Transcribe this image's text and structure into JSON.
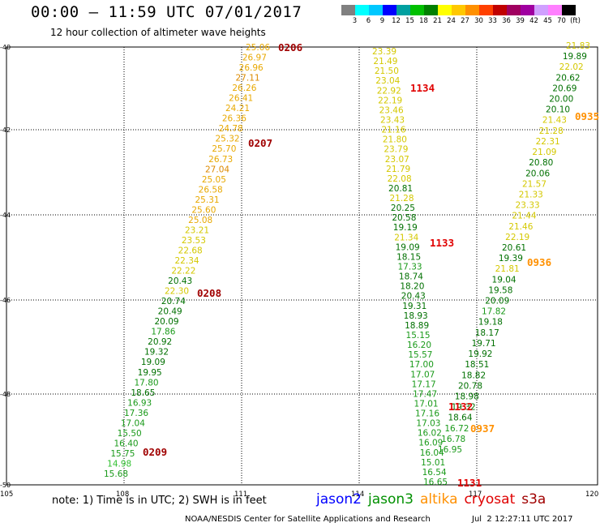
{
  "header": {
    "title": "00:00 – 11:59 UTC 07/01/2017",
    "subtitle": "12 hour collection of altimeter wave heights"
  },
  "legend": {
    "colors": [
      "#808080",
      "#00ffff",
      "#00c8ff",
      "#0000ff",
      "#00a0a0",
      "#00c000",
      "#008000",
      "#ffff00",
      "#ffc800",
      "#ff9000",
      "#ff4000",
      "#c00000",
      "#a00060",
      "#a000a0",
      "#d0a0ff",
      "#ff80ff",
      "#000000"
    ],
    "labels": [
      "3",
      "6",
      "9",
      "12",
      "15",
      "18",
      "21",
      "24",
      "27",
      "30",
      "33",
      "36",
      "39",
      "42",
      "45",
      "70",
      "(ft)"
    ]
  },
  "axes": {
    "x_ticks": [
      "105",
      "108",
      "111",
      "114",
      "117",
      "120"
    ],
    "y_ticks": [
      "-40",
      "-42",
      "-44",
      "-46",
      "-48",
      "-50"
    ]
  },
  "tracks": [
    {
      "values": [
        "25.06",
        "26.97",
        "26.96",
        "27.11",
        "26.26",
        "26.41",
        "24.21",
        "26.36",
        "24.78",
        "25.32",
        "25.70",
        "26.73",
        "27.04",
        "25.05",
        "26.58",
        "25.31",
        "25.60",
        "25.08",
        "23.21",
        "23.53",
        "22.68",
        "22.34",
        "22.22",
        "20.43",
        "22.30",
        "20.74",
        "20.49",
        "20.09",
        "17.86",
        "20.92",
        "19.32",
        "19.09",
        "19.95",
        "17.80",
        "18.65",
        "16.93",
        "17.36",
        "17.04",
        "15.50",
        "16.40",
        "15.75",
        "14.98",
        "15.68"
      ]
    },
    {
      "values": [
        "23.39",
        "21.49",
        "21.50",
        "23.04",
        "22.92",
        "22.19",
        "23.46",
        "23.43",
        "21.16",
        "21.80",
        "23.79",
        "23.07",
        "21.79",
        "22.08",
        "20.81",
        "21.28",
        "20.25",
        "20.58",
        "19.19",
        "21.34",
        "19.09",
        "18.15",
        "17.33",
        "18.74",
        "18.20",
        "20.43",
        "19.31",
        "18.93",
        "18.89",
        "15.15",
        "16.20",
        "15.57",
        "17.00",
        "17.07",
        "17.17",
        "17.47",
        "17.01",
        "17.16",
        "17.03",
        "16.02",
        "16.09",
        "16.04",
        "15.01",
        "16.54",
        "16.65"
      ]
    },
    {
      "values": [
        "21.83",
        "19.89",
        "22.02",
        "20.62",
        "20.69",
        "20.00",
        "20.10",
        "21.43",
        "21.28",
        "22.31",
        "21.09",
        "20.80",
        "20.06",
        "21.57",
        "21.33",
        "23.33",
        "21.44",
        "21.46",
        "22.19",
        "20.61",
        "19.39",
        "21.81",
        "19.04",
        "19.58",
        "20.09",
        "17.82",
        "19.18",
        "18.17",
        "19.71",
        "19.92",
        "18.51",
        "18.82",
        "20.78",
        "18.98",
        "19.32",
        "18.64",
        "16.72",
        "16.78",
        "16.95"
      ]
    }
  ],
  "time_labels": [
    "0206",
    "0207",
    "0208",
    "0209",
    "1134",
    "1133",
    "1132",
    "1131",
    "0935",
    "0936",
    "0937"
  ],
  "notes": {
    "note": "note: 1) Time is in UTC; 2) SWH is in feet",
    "satellites": [
      {
        "name": "jason2",
        "color": "#0000ff"
      },
      {
        "name": "jason3",
        "color": "#009000"
      },
      {
        "name": "altika",
        "color": "#ff9000"
      },
      {
        "name": "cryosat",
        "color": "#e00000"
      },
      {
        "name": "s3a",
        "color": "#a00000"
      }
    ],
    "footer": "NOAA/NESDIS Center for Satellite Applications and Research",
    "footer_date": "Jul  2 12:27:11 UTC 2017"
  }
}
